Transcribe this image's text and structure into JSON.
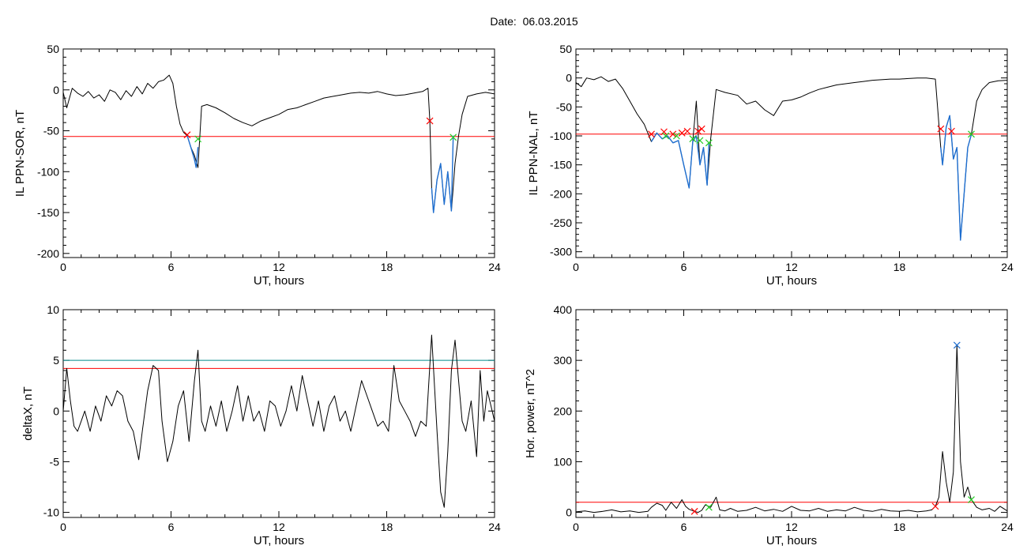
{
  "figure": {
    "date_label": "Date:",
    "date_value": "06.03.2015"
  },
  "colors": {
    "line": "#000000",
    "threshold": "#ff0000",
    "threshold2": "#008b8b",
    "blue": "#1f6fd0",
    "red_marker": "#ff0000",
    "green_marker": "#22cc22",
    "blue_marker": "#1f6fd0"
  },
  "chart_data": [
    {
      "type": "line",
      "xlabel": "UT, hours",
      "ylabel": "IL PPN-SOR, nT",
      "xlim": [
        0,
        24
      ],
      "ylim": [
        -205,
        50
      ],
      "xticks": [
        0,
        6,
        12,
        18,
        24
      ],
      "yticks": [
        50,
        0,
        -50,
        -100,
        -150,
        -200
      ],
      "series": [
        {
          "role": "main",
          "x": [
            0,
            0.2,
            0.5,
            0.8,
            1.1,
            1.4,
            1.7,
            2,
            2.3,
            2.6,
            2.9,
            3.2,
            3.5,
            3.8,
            4.1,
            4.4,
            4.7,
            5,
            5.3,
            5.6,
            5.9,
            6.1,
            6.3,
            6.5,
            6.7,
            6.9,
            7.1,
            7.3,
            7.5,
            7.7,
            8,
            8.5,
            9,
            9.5,
            10,
            10.5,
            11,
            11.5,
            12,
            12.5,
            13,
            13.5,
            14,
            14.5,
            15,
            15.5,
            16,
            16.5,
            17,
            17.5,
            18,
            18.5,
            19,
            19.5,
            20,
            20.3,
            20.4,
            20.5,
            20.6,
            20.8,
            21,
            21.2,
            21.4,
            21.6,
            21.8,
            22,
            22.2,
            22.5,
            23,
            23.5,
            24
          ],
          "y": [
            -3,
            -22,
            2,
            -4,
            -8,
            -2,
            -10,
            -6,
            -14,
            0,
            -3,
            -12,
            -1,
            -8,
            4,
            -5,
            8,
            2,
            10,
            12,
            18,
            8,
            -20,
            -42,
            -52,
            -56,
            -70,
            -80,
            -95,
            -20,
            -18,
            -22,
            -28,
            -35,
            -40,
            -44,
            -38,
            -34,
            -30,
            -24,
            -22,
            -18,
            -14,
            -10,
            -8,
            -6,
            -4,
            -3,
            -4,
            -2,
            -5,
            -7,
            -6,
            -4,
            -2,
            2,
            -38,
            -120,
            -150,
            -110,
            -90,
            -140,
            -100,
            -148,
            -90,
            -56,
            -30,
            -8,
            -5,
            -3,
            -5
          ]
        },
        {
          "role": "blue-segment",
          "x": [
            6.9,
            7.1,
            7.3,
            7.4,
            7.5
          ],
          "y": [
            -56,
            -70,
            -85,
            -95,
            -70
          ]
        },
        {
          "role": "blue-segment",
          "x": [
            20.5,
            20.6,
            20.8,
            21,
            21.2,
            21.4,
            21.6,
            21.7
          ],
          "y": [
            -120,
            -150,
            -110,
            -90,
            -140,
            -100,
            -148,
            -56
          ]
        },
        {
          "role": "threshold",
          "value": -57
        }
      ],
      "markers": [
        {
          "x": 6.9,
          "y": -55,
          "color": "red"
        },
        {
          "x": 7.5,
          "y": -60,
          "color": "green"
        },
        {
          "x": 20.4,
          "y": -38,
          "color": "red"
        },
        {
          "x": 21.7,
          "y": -58,
          "color": "green"
        }
      ]
    },
    {
      "type": "line",
      "xlabel": "UT, hours",
      "ylabel": "IL PPN-NAL, nT",
      "xlim": [
        0,
        24
      ],
      "ylim": [
        -310,
        50
      ],
      "xticks": [
        0,
        6,
        12,
        18,
        24
      ],
      "yticks": [
        50,
        0,
        -50,
        -100,
        -150,
        -200,
        -250,
        -300
      ],
      "series": [
        {
          "role": "main",
          "x": [
            0,
            0.3,
            0.6,
            1,
            1.4,
            1.8,
            2.2,
            2.6,
            3,
            3.4,
            3.8,
            4.2,
            4.5,
            4.8,
            5.1,
            5.4,
            5.7,
            6,
            6.3,
            6.5,
            6.7,
            6.9,
            7.1,
            7.3,
            7.5,
            7.8,
            8.3,
            9,
            9.5,
            10,
            10.5,
            11,
            11.5,
            12,
            12.5,
            13,
            13.5,
            14,
            14.5,
            15,
            15.5,
            16,
            16.5,
            17,
            17.5,
            18,
            18.5,
            19,
            19.5,
            20,
            20.3,
            20.4,
            20.6,
            20.8,
            21,
            21.2,
            21.4,
            21.6,
            21.8,
            22,
            22.3,
            22.6,
            23,
            23.5,
            24
          ],
          "y": [
            -8,
            -15,
            0,
            -3,
            2,
            -6,
            -2,
            -18,
            -40,
            -62,
            -80,
            -110,
            -95,
            -105,
            -100,
            -112,
            -108,
            -150,
            -190,
            -110,
            -40,
            -150,
            -120,
            -185,
            -105,
            -20,
            -25,
            -30,
            -45,
            -40,
            -55,
            -65,
            -40,
            -38,
            -33,
            -26,
            -20,
            -16,
            -12,
            -10,
            -8,
            -6,
            -4,
            -3,
            -2,
            -2,
            -1,
            0,
            0,
            -2,
            -120,
            -150,
            -85,
            -65,
            -140,
            -120,
            -280,
            -200,
            -120,
            -98,
            -40,
            -20,
            -8,
            -5,
            -4
          ]
        },
        {
          "role": "blue-segment",
          "x": [
            4.2,
            4.5,
            4.8,
            5.1,
            5.4,
            5.7,
            6,
            6.3,
            6.5,
            6.7,
            6.9,
            7.1,
            7.3,
            7.4
          ],
          "y": [
            -110,
            -95,
            -105,
            -100,
            -112,
            -108,
            -150,
            -190,
            -110,
            -100,
            -150,
            -120,
            -185,
            -112
          ]
        },
        {
          "role": "blue-segment",
          "x": [
            20.3,
            20.4,
            20.6,
            20.8,
            21,
            21.2,
            21.4,
            21.6,
            21.8,
            22
          ],
          "y": [
            -120,
            -150,
            -85,
            -65,
            -140,
            -120,
            -280,
            -200,
            -120,
            -98
          ]
        },
        {
          "role": "threshold",
          "value": -97
        }
      ],
      "markers": [
        {
          "x": 4.2,
          "y": -97,
          "color": "red"
        },
        {
          "x": 4.9,
          "y": -93,
          "color": "red"
        },
        {
          "x": 5.4,
          "y": -97,
          "color": "red"
        },
        {
          "x": 5.9,
          "y": -95,
          "color": "red"
        },
        {
          "x": 6.2,
          "y": -92,
          "color": "red"
        },
        {
          "x": 6.8,
          "y": -92,
          "color": "red"
        },
        {
          "x": 7.0,
          "y": -88,
          "color": "red"
        },
        {
          "x": 5.0,
          "y": -100,
          "color": "green"
        },
        {
          "x": 5.6,
          "y": -100,
          "color": "green"
        },
        {
          "x": 6.5,
          "y": -105,
          "color": "green"
        },
        {
          "x": 6.9,
          "y": -108,
          "color": "green"
        },
        {
          "x": 7.4,
          "y": -112,
          "color": "green"
        },
        {
          "x": 20.3,
          "y": -88,
          "color": "red"
        },
        {
          "x": 20.9,
          "y": -92,
          "color": "red"
        },
        {
          "x": 22.0,
          "y": -97,
          "color": "green"
        }
      ]
    },
    {
      "type": "line",
      "xlabel": "UT, hours",
      "ylabel": "deltaX, nT",
      "xlim": [
        0,
        24
      ],
      "ylim": [
        -10.5,
        10
      ],
      "xticks": [
        0,
        6,
        12,
        18,
        24
      ],
      "yticks": [
        10,
        5,
        0,
        -5,
        -10
      ],
      "series": [
        {
          "role": "main",
          "x": [
            0,
            0.2,
            0.4,
            0.6,
            0.8,
            1,
            1.2,
            1.5,
            1.8,
            2.1,
            2.4,
            2.7,
            3,
            3.3,
            3.6,
            3.9,
            4.2,
            4.4,
            4.7,
            5,
            5.3,
            5.5,
            5.8,
            6.1,
            6.4,
            6.7,
            7,
            7.3,
            7.5,
            7.7,
            7.9,
            8.2,
            8.5,
            8.8,
            9.1,
            9.4,
            9.7,
            10,
            10.3,
            10.6,
            10.9,
            11.2,
            11.5,
            11.8,
            12.1,
            12.4,
            12.7,
            13,
            13.3,
            13.6,
            13.9,
            14.2,
            14.5,
            14.8,
            15.1,
            15.4,
            15.7,
            16,
            16.3,
            16.6,
            16.9,
            17.2,
            17.5,
            17.8,
            18.1,
            18.4,
            18.7,
            19,
            19.3,
            19.6,
            19.9,
            20.2,
            20.5,
            20.8,
            21,
            21.2,
            21.4,
            21.6,
            21.8,
            22,
            22.2,
            22.4,
            22.7,
            23,
            23.2,
            23.4,
            23.6,
            23.8,
            24
          ],
          "y": [
            0,
            4.2,
            1,
            -1.5,
            -2,
            -1,
            0,
            -2,
            0.5,
            -1,
            1.5,
            0.5,
            2,
            1.5,
            -1,
            -2,
            -4.8,
            -2,
            2,
            4.5,
            4,
            -1,
            -5,
            -3,
            0.5,
            2,
            -3,
            3,
            6,
            -1,
            -2,
            0.5,
            -1.5,
            1,
            -2,
            0,
            2.5,
            -1,
            1.5,
            -1,
            0,
            -2,
            1,
            0.5,
            -1.5,
            0,
            2.5,
            0,
            3.5,
            1,
            -1.5,
            1,
            -2,
            0.5,
            1.5,
            -1,
            0,
            -2,
            0.5,
            3,
            1.5,
            0,
            -1.5,
            -1,
            -2,
            4.5,
            1,
            0,
            -1,
            -2.5,
            -1,
            -1.5,
            7.5,
            -2,
            -8,
            -9.5,
            -4,
            4,
            7,
            3,
            -1,
            -2,
            1,
            -4.5,
            4,
            -1,
            2,
            0.5,
            -1
          ]
        },
        {
          "role": "threshold",
          "value": 4.2
        },
        {
          "role": "threshold2",
          "value": 5.0
        }
      ]
    },
    {
      "type": "line",
      "xlabel": "UT, hours",
      "ylabel": "Hor. power, nT^2",
      "xlim": [
        0,
        24
      ],
      "ylim": [
        -10,
        400
      ],
      "xticks": [
        0,
        6,
        12,
        18,
        24
      ],
      "yticks": [
        400,
        300,
        200,
        100,
        0
      ],
      "series": [
        {
          "role": "main",
          "x": [
            0,
            0.5,
            1,
            1.5,
            2,
            2.5,
            3,
            3.5,
            4,
            4.2,
            4.5,
            4.8,
            5,
            5.3,
            5.6,
            5.9,
            6.1,
            6.3,
            6.6,
            6.8,
            7,
            7.2,
            7.5,
            7.8,
            8,
            8.3,
            8.6,
            9,
            9.5,
            10,
            10.5,
            11,
            11.5,
            12,
            12.5,
            13,
            13.5,
            14,
            14.5,
            15,
            15.5,
            16,
            16.5,
            17,
            17.5,
            18,
            18.5,
            19,
            19.5,
            19.8,
            20,
            20.2,
            20.4,
            20.6,
            20.8,
            21,
            21.2,
            21.4,
            21.6,
            21.8,
            22,
            22.3,
            22.6,
            23,
            23.3,
            23.6,
            24
          ],
          "y": [
            1,
            3,
            0,
            2,
            5,
            1,
            3,
            0,
            2,
            10,
            18,
            14,
            4,
            20,
            8,
            25,
            12,
            6,
            2,
            0,
            4,
            15,
            10,
            30,
            5,
            3,
            8,
            2,
            4,
            10,
            3,
            6,
            2,
            12,
            4,
            3,
            8,
            2,
            5,
            3,
            10,
            4,
            2,
            6,
            3,
            2,
            4,
            1,
            3,
            5,
            12,
            30,
            120,
            60,
            20,
            80,
            330,
            100,
            30,
            50,
            25,
            10,
            5,
            8,
            2,
            12,
            3
          ]
        },
        {
          "role": "threshold",
          "value": 20
        }
      ],
      "markers": [
        {
          "x": 6.6,
          "y": 2,
          "color": "red"
        },
        {
          "x": 7.4,
          "y": 10,
          "color": "green"
        },
        {
          "x": 20.0,
          "y": 12,
          "color": "red"
        },
        {
          "x": 21.2,
          "y": 330,
          "color": "blue"
        },
        {
          "x": 22.0,
          "y": 25,
          "color": "green"
        }
      ]
    }
  ]
}
